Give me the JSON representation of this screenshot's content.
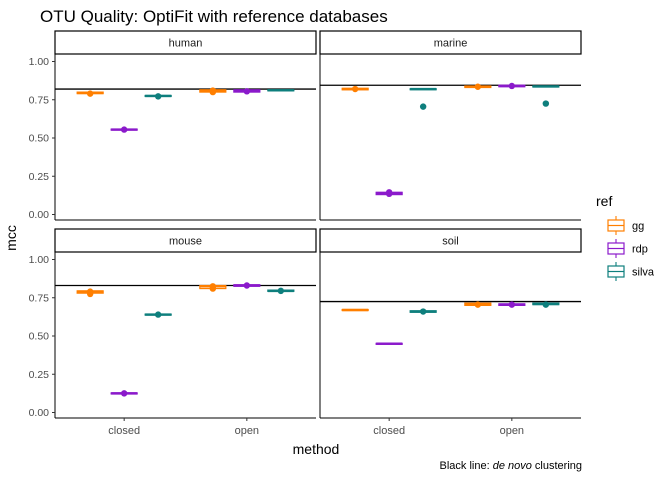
{
  "chart_data": {
    "type": "box",
    "title": "OTU Quality: OptiFit with reference databases",
    "xlabel": "method",
    "ylabel": "mcc",
    "categories": [
      "closed",
      "open"
    ],
    "ylim": [
      0,
      1
    ],
    "yticks": [
      "0.00",
      "0.25",
      "0.50",
      "0.75",
      "1.00"
    ],
    "grid": false,
    "caption": {
      "prefix": "Black line: ",
      "emph": "de novo",
      "suffix": " clustering"
    },
    "legend": {
      "title": "ref",
      "position": "right",
      "items": [
        {
          "name": "gg",
          "color": "#FF7F00"
        },
        {
          "name": "rdp",
          "color": "#8B1ACB"
        },
        {
          "name": "silva",
          "color": "#0E7F7D"
        }
      ]
    },
    "series_colors": {
      "gg": "#FF7F00",
      "rdp": "#8B1ACB",
      "silva": "#0E7F7D"
    },
    "panels": [
      {
        "name": "human",
        "denovo_mcc": 0.82,
        "groups": [
          {
            "method": "closed",
            "ref": "gg",
            "median": 0.795,
            "low": 0.79,
            "high": 0.8,
            "outliers": [
              0.79
            ]
          },
          {
            "method": "closed",
            "ref": "rdp",
            "median": 0.555,
            "low": 0.553,
            "high": 0.558,
            "outliers": [
              0.555
            ]
          },
          {
            "method": "closed",
            "ref": "silva",
            "median": 0.775,
            "low": 0.772,
            "high": 0.778,
            "outliers": [
              0.772
            ]
          },
          {
            "method": "open",
            "ref": "gg",
            "median": 0.81,
            "low": 0.8,
            "high": 0.815,
            "outliers": [
              0.8,
              0.81
            ]
          },
          {
            "method": "open",
            "ref": "rdp",
            "median": 0.81,
            "low": 0.8,
            "high": 0.815,
            "outliers": [
              0.805
            ]
          },
          {
            "method": "open",
            "ref": "silva",
            "median": 0.812,
            "low": 0.81,
            "high": 0.815,
            "outliers": []
          }
        ]
      },
      {
        "name": "marine",
        "denovo_mcc": 0.845,
        "groups": [
          {
            "method": "closed",
            "ref": "gg",
            "median": 0.82,
            "low": 0.815,
            "high": 0.825,
            "outliers": [
              0.82
            ]
          },
          {
            "method": "closed",
            "ref": "rdp",
            "median": 0.14,
            "low": 0.13,
            "high": 0.145,
            "outliers": [
              0.135,
              0.145
            ]
          },
          {
            "method": "closed",
            "ref": "silva",
            "median": 0.82,
            "low": 0.818,
            "high": 0.822,
            "outliers": [
              0.705
            ]
          },
          {
            "method": "open",
            "ref": "gg",
            "median": 0.835,
            "low": 0.83,
            "high": 0.84,
            "outliers": [
              0.835
            ]
          },
          {
            "method": "open",
            "ref": "rdp",
            "median": 0.84,
            "low": 0.835,
            "high": 0.845,
            "outliers": [
              0.84
            ]
          },
          {
            "method": "open",
            "ref": "silva",
            "median": 0.837,
            "low": 0.835,
            "high": 0.84,
            "outliers": [
              0.725
            ]
          }
        ]
      },
      {
        "name": "mouse",
        "denovo_mcc": 0.83,
        "groups": [
          {
            "method": "closed",
            "ref": "gg",
            "median": 0.79,
            "low": 0.78,
            "high": 0.795,
            "outliers": [
              0.775,
              0.79
            ]
          },
          {
            "method": "closed",
            "ref": "rdp",
            "median": 0.125,
            "low": 0.123,
            "high": 0.128,
            "outliers": [
              0.125
            ]
          },
          {
            "method": "closed",
            "ref": "silva",
            "median": 0.64,
            "low": 0.637,
            "high": 0.643,
            "outliers": [
              0.64
            ]
          },
          {
            "method": "open",
            "ref": "gg",
            "median": 0.825,
            "low": 0.81,
            "high": 0.83,
            "outliers": [
              0.81,
              0.825
            ]
          },
          {
            "method": "open",
            "ref": "rdp",
            "median": 0.83,
            "low": 0.825,
            "high": 0.835,
            "outliers": [
              0.83
            ]
          },
          {
            "method": "open",
            "ref": "silva",
            "median": 0.795,
            "low": 0.792,
            "high": 0.8,
            "outliers": [
              0.795
            ]
          }
        ]
      },
      {
        "name": "soil",
        "denovo_mcc": 0.725,
        "groups": [
          {
            "method": "closed",
            "ref": "gg",
            "median": 0.67,
            "low": 0.668,
            "high": 0.673,
            "outliers": []
          },
          {
            "method": "closed",
            "ref": "rdp",
            "median": 0.45,
            "low": 0.448,
            "high": 0.452,
            "outliers": []
          },
          {
            "method": "closed",
            "ref": "silva",
            "median": 0.66,
            "low": 0.655,
            "high": 0.665,
            "outliers": [
              0.66
            ]
          },
          {
            "method": "open",
            "ref": "gg",
            "median": 0.71,
            "low": 0.7,
            "high": 0.715,
            "outliers": [
              0.705
            ]
          },
          {
            "method": "open",
            "ref": "rdp",
            "median": 0.705,
            "low": 0.7,
            "high": 0.71,
            "outliers": [
              0.705
            ]
          },
          {
            "method": "open",
            "ref": "silva",
            "median": 0.71,
            "low": 0.705,
            "high": 0.715,
            "outliers": [
              0.705
            ]
          }
        ]
      }
    ]
  }
}
